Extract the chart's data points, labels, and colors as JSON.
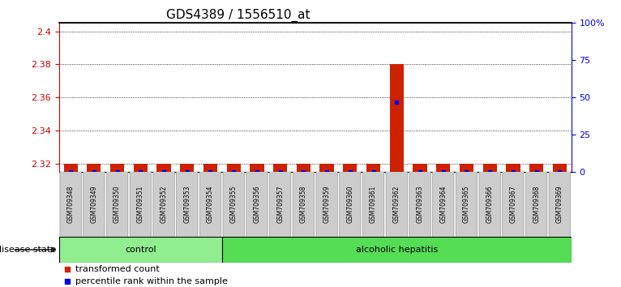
{
  "title": "GDS4389 / 1556510_at",
  "samples": [
    "GSM709348",
    "GSM709349",
    "GSM709350",
    "GSM709351",
    "GSM709352",
    "GSM709353",
    "GSM709354",
    "GSM709355",
    "GSM709356",
    "GSM709357",
    "GSM709358",
    "GSM709359",
    "GSM709360",
    "GSM709361",
    "GSM709362",
    "GSM709363",
    "GSM709364",
    "GSM709365",
    "GSM709366",
    "GSM709367",
    "GSM709368",
    "GSM709369"
  ],
  "transformed_count": [
    2.32,
    2.32,
    2.32,
    2.32,
    2.32,
    2.32,
    2.32,
    2.32,
    2.32,
    2.32,
    2.32,
    2.32,
    2.32,
    2.32,
    2.38,
    2.32,
    2.32,
    2.32,
    2.32,
    2.32,
    2.32,
    2.32
  ],
  "percentile_rank": [
    0.0,
    0.0,
    0.0,
    0.0,
    0.0,
    0.0,
    0.0,
    0.0,
    0.0,
    0.0,
    0.0,
    0.0,
    0.0,
    0.0,
    47.0,
    0.0,
    0.0,
    0.0,
    0.0,
    0.0,
    0.0,
    0.0
  ],
  "ylim_left": [
    2.315,
    2.405
  ],
  "ylim_right": [
    0,
    100
  ],
  "yticks_left": [
    2.32,
    2.34,
    2.36,
    2.38,
    2.4
  ],
  "yticks_right": [
    0,
    25,
    50,
    75,
    100
  ],
  "ytick_labels_right": [
    "0",
    "25",
    "50",
    "75",
    "100%"
  ],
  "control_count": 7,
  "group_labels": [
    "control",
    "alcoholic hepatitis"
  ],
  "bar_color_red": "#CC2200",
  "bar_color_blue": "#0000EE",
  "tick_box_color": "#CCCCCC",
  "tick_box_edge": "#999999",
  "plot_bg": "#FFFFFF",
  "grid_color": "#000000",
  "left_axis_color": "#CC0000",
  "right_axis_color": "#0000EE",
  "disease_state_label": "disease state",
  "control_color": "#90EE90",
  "hepatitis_color": "#55DD55",
  "figsize": [
    7.66,
    3.54
  ],
  "dpi": 100
}
